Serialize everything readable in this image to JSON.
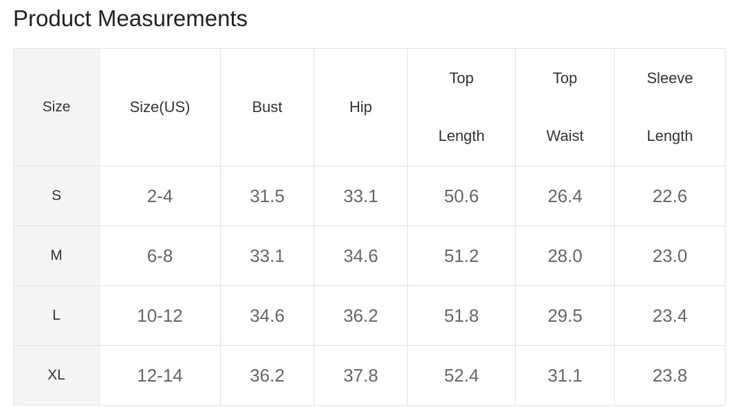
{
  "title": "Product Measurements",
  "table": {
    "headers": [
      [
        "Size"
      ],
      [
        "Size(US)"
      ],
      [
        "Bust"
      ],
      [
        "Hip"
      ],
      [
        "Top",
        "Length"
      ],
      [
        "Top",
        "Waist"
      ],
      [
        "Sleeve",
        "Length"
      ]
    ],
    "rows": [
      [
        "S",
        "2-4",
        "31.5",
        "33.1",
        "50.6",
        "26.4",
        "22.6"
      ],
      [
        "M",
        "6-8",
        "33.1",
        "34.6",
        "51.2",
        "28.0",
        "23.0"
      ],
      [
        "L",
        "10-12",
        "34.6",
        "36.2",
        "51.8",
        "29.5",
        "23.4"
      ],
      [
        "XL",
        "12-14",
        "36.2",
        "37.8",
        "52.4",
        "31.1",
        "23.8"
      ]
    ]
  }
}
